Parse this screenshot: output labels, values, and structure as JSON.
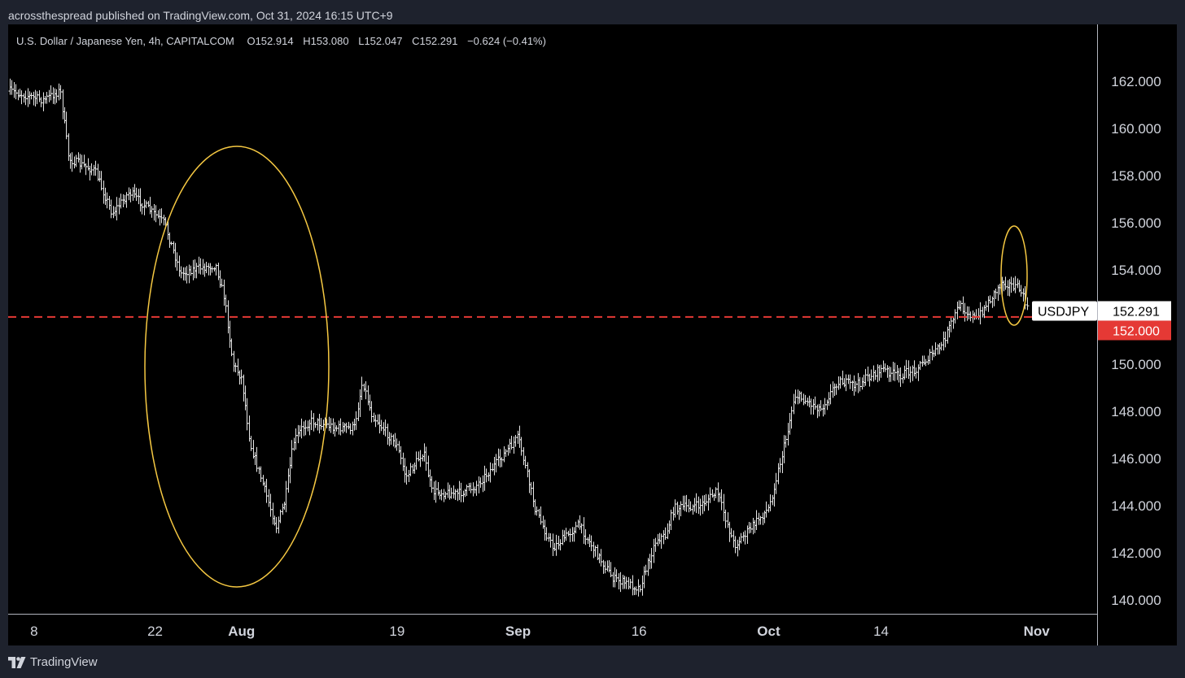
{
  "header": {
    "published_by": "acrossthespread published on TradingView.com, Oct 31, 2024 16:15 UTC+9"
  },
  "footer": {
    "brand": "TradingView"
  },
  "colors": {
    "background": "#000000",
    "bars": "#e6e6e6",
    "annotation_ellipse": "#f5c842",
    "level_line": "#e53935",
    "axis_text": "#d1d4dc"
  },
  "chart_data": {
    "type": "ohlc",
    "title": "U.S. Dollar / Japanese Yen, 4h, CAPITALCOM",
    "ohlc_readout": {
      "open": "O152.914",
      "high": "H153.080",
      "low": "L152.047",
      "close": "C152.291",
      "change": "−0.624 (−0.41%)"
    },
    "symbol": "USDJPY",
    "last_price": "152.291",
    "level_line": {
      "value": 152.0,
      "label": "152.000",
      "style": "dashed"
    },
    "y_axis": {
      "ticks": [
        "140.000",
        "142.000",
        "144.000",
        "146.000",
        "148.000",
        "150.000",
        "152.000",
        "154.000",
        "156.000",
        "158.000",
        "160.000",
        "162.000"
      ],
      "range": [
        138.2,
        163.1
      ]
    },
    "x_axis": {
      "range": [
        "2024-07-05",
        "2024-11-08"
      ],
      "ticks": [
        {
          "label": "8",
          "date": "2024-07-08",
          "bold": false
        },
        {
          "label": "22",
          "date": "2024-07-22",
          "bold": false
        },
        {
          "label": "Aug",
          "date": "2024-08-01",
          "bold": true
        },
        {
          "label": "19",
          "date": "2024-08-19",
          "bold": false
        },
        {
          "label": "Sep",
          "date": "2024-09-02",
          "bold": true
        },
        {
          "label": "16",
          "date": "2024-09-16",
          "bold": false
        },
        {
          "label": "Oct",
          "date": "2024-10-01",
          "bold": true
        },
        {
          "label": "14",
          "date": "2024-10-14",
          "bold": false
        },
        {
          "label": "Nov",
          "date": "2024-11-01",
          "bold": true
        }
      ]
    },
    "price_path": {
      "date": [
        "2024-07-05",
        "2024-07-09",
        "2024-07-11",
        "2024-07-12",
        "2024-07-15",
        "2024-07-17",
        "2024-07-19",
        "2024-07-23",
        "2024-07-25",
        "2024-07-26",
        "2024-07-29",
        "2024-07-30",
        "2024-07-31",
        "2024-08-01",
        "2024-08-02",
        "2024-08-05",
        "2024-08-06",
        "2024-08-07",
        "2024-08-08",
        "2024-08-09",
        "2024-08-12",
        "2024-08-14",
        "2024-08-15",
        "2024-08-16",
        "2024-08-19",
        "2024-08-20",
        "2024-08-22",
        "2024-08-23",
        "2024-08-26",
        "2024-08-28",
        "2024-08-30",
        "2024-09-02",
        "2024-09-04",
        "2024-09-06",
        "2024-09-09",
        "2024-09-11",
        "2024-09-13",
        "2024-09-16",
        "2024-09-18",
        "2024-09-19",
        "2024-09-20",
        "2024-09-23",
        "2024-09-25",
        "2024-09-27",
        "2024-09-30",
        "2024-10-01",
        "2024-10-03",
        "2024-10-04",
        "2024-10-07",
        "2024-10-09",
        "2024-10-11",
        "2024-10-14",
        "2024-10-16",
        "2024-10-18",
        "2024-10-21",
        "2024-10-23",
        "2024-10-25",
        "2024-10-28",
        "2024-10-30",
        "2024-10-31"
      ],
      "close": [
        161.6,
        161.2,
        161.6,
        158.7,
        158.2,
        156.4,
        157.3,
        156.0,
        153.8,
        154.0,
        154.2,
        152.8,
        150.0,
        149.4,
        146.6,
        143.1,
        144.2,
        146.7,
        147.3,
        147.6,
        147.3,
        147.3,
        149.3,
        147.9,
        146.5,
        145.2,
        146.3,
        144.6,
        144.5,
        144.8,
        145.6,
        146.9,
        143.8,
        142.2,
        143.2,
        142.0,
        140.9,
        140.5,
        142.6,
        142.7,
        143.9,
        144.0,
        144.6,
        142.3,
        143.5,
        143.9,
        146.9,
        148.7,
        148.1,
        149.3,
        149.1,
        149.8,
        149.5,
        149.8,
        150.8,
        152.5,
        151.9,
        153.5,
        153.2,
        152.291
      ]
    }
  }
}
